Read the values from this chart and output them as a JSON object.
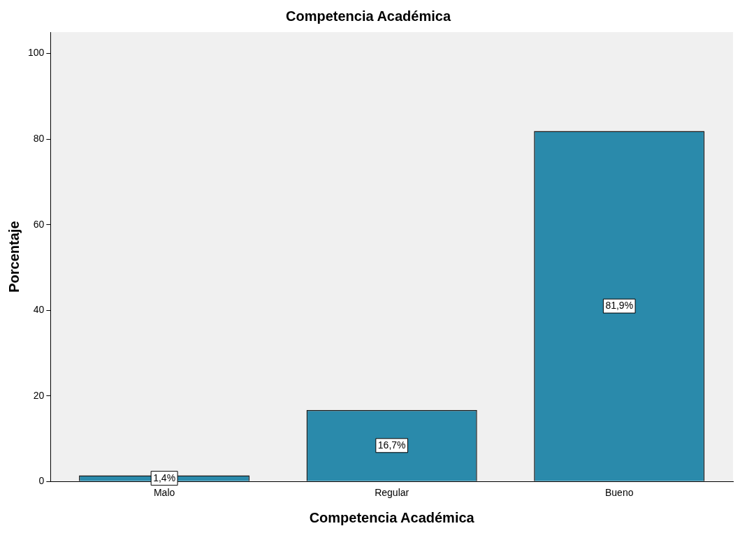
{
  "chart_data": {
    "type": "bar",
    "title": "Competencia Académica",
    "xlabel": "Competencia Académica",
    "ylabel": "Porcentaje",
    "categories": [
      "Malo",
      "Regular",
      "Bueno"
    ],
    "values": [
      1.4,
      16.7,
      81.9
    ],
    "value_labels": [
      "1,4%",
      "16,7%",
      "81,9%"
    ],
    "color": "#2a8aab",
    "ylim": [
      0,
      105
    ],
    "yticks": [
      0,
      20,
      40,
      60,
      80,
      100
    ],
    "grid": false,
    "legend": false
  }
}
